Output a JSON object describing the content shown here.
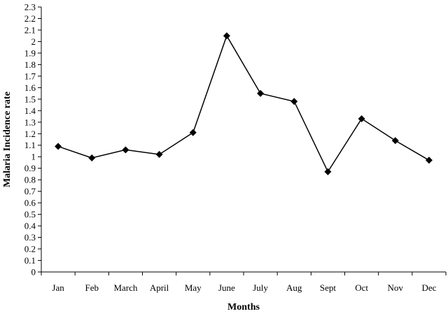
{
  "chart_data": {
    "type": "line",
    "title": "",
    "xlabel": "Months",
    "ylabel": "Malaria Incidence rate",
    "categories": [
      "Jan",
      "Feb",
      "March",
      "April",
      "May",
      "June",
      "July",
      "Aug",
      "Sept",
      "Oct",
      "Nov",
      "Dec"
    ],
    "series": [
      {
        "values": [
          1.09,
          0.99,
          1.06,
          1.02,
          1.21,
          2.05,
          1.55,
          1.48,
          0.87,
          1.33,
          1.14,
          0.97
        ]
      }
    ],
    "ylim": [
      0,
      2.3
    ],
    "yticks": [
      "0",
      "0.1",
      "0.2",
      "0.3",
      "0.4",
      "0.5",
      "0.6",
      "0.7",
      "0.8",
      "0.9",
      "1",
      "1.1",
      "1.2",
      "1.3",
      "1.4",
      "1.5",
      "1.6",
      "1.7",
      "1.8",
      "1.9",
      "2",
      "2.1",
      "2.2",
      "2.3"
    ],
    "grid": false,
    "legend": "none",
    "marker": "diamond",
    "colors": {
      "series": "#000000",
      "axes": "#000000",
      "background": "#ffffff"
    }
  }
}
